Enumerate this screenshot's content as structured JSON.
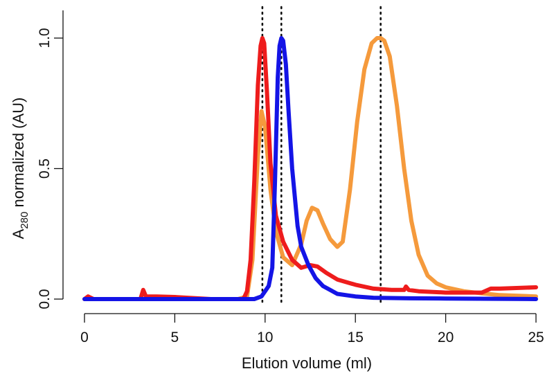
{
  "chart_data": {
    "type": "line",
    "title": "",
    "xlabel": "Elution volume (ml)",
    "ylabel": {
      "prefix": "A",
      "subscript": "280",
      "suffix": " normalized (AU)"
    },
    "xlim": [
      0,
      25
    ],
    "ylim": [
      0,
      1
    ],
    "xticks": [
      0,
      5,
      10,
      15,
      20,
      25
    ],
    "xtick_labels": [
      "0",
      "5",
      "10",
      "15",
      "20",
      "25"
    ],
    "yticks": [
      0,
      0.5,
      1
    ],
    "ytick_labels": [
      "0.0",
      "0.5",
      "1.0"
    ],
    "reference_lines_x": [
      9.85,
      10.9,
      16.4
    ],
    "legend": null,
    "grid": false,
    "series": [
      {
        "name": "orange",
        "color": "#f59a3c",
        "x": [
          0,
          3.2,
          3.4,
          5,
          8.5,
          9.0,
          9.3,
          9.6,
          9.8,
          10.0,
          10.3,
          10.6,
          11.0,
          11.5,
          12.0,
          12.3,
          12.6,
          12.9,
          13.2,
          13.6,
          14.0,
          14.3,
          14.7,
          15.1,
          15.5,
          15.9,
          16.2,
          16.4,
          16.6,
          16.9,
          17.3,
          17.7,
          18.1,
          18.5,
          19.0,
          19.5,
          20.0,
          21.0,
          22.0,
          23.0,
          25.0
        ],
        "values": [
          0.0,
          0.0,
          0.0,
          0.0,
          0.0,
          0.01,
          0.15,
          0.55,
          0.72,
          0.66,
          0.42,
          0.26,
          0.16,
          0.13,
          0.21,
          0.3,
          0.35,
          0.34,
          0.29,
          0.23,
          0.2,
          0.22,
          0.42,
          0.68,
          0.88,
          0.98,
          1.0,
          1.0,
          0.99,
          0.93,
          0.74,
          0.5,
          0.3,
          0.17,
          0.09,
          0.06,
          0.045,
          0.03,
          0.022,
          0.015,
          0.01
        ]
      },
      {
        "name": "red",
        "color": "#ee1c1c",
        "x": [
          0,
          0.2,
          0.35,
          0.5,
          3.1,
          3.25,
          3.4,
          4.0,
          5,
          7,
          8.8,
          9.0,
          9.2,
          9.4,
          9.6,
          9.75,
          9.85,
          9.95,
          10.1,
          10.3,
          10.6,
          11.0,
          11.5,
          12.0,
          12.5,
          12.9,
          13.4,
          14.0,
          15.0,
          16.0,
          17.0,
          17.7,
          17.8,
          17.95,
          18.5,
          20.0,
          22.0,
          22.5,
          23.0,
          25.0
        ],
        "values": [
          0.0,
          0.01,
          0.005,
          0.0,
          0.0,
          0.035,
          0.01,
          0.01,
          0.008,
          0.0,
          0.0,
          0.03,
          0.15,
          0.45,
          0.82,
          0.97,
          1.0,
          0.98,
          0.8,
          0.52,
          0.32,
          0.22,
          0.15,
          0.12,
          0.13,
          0.125,
          0.1,
          0.075,
          0.055,
          0.04,
          0.035,
          0.035,
          0.048,
          0.035,
          0.03,
          0.025,
          0.025,
          0.04,
          0.04,
          0.045
        ]
      },
      {
        "name": "blue",
        "color": "#1414e6",
        "x": [
          0,
          5,
          8,
          9.4,
          9.8,
          10.0,
          10.2,
          10.4,
          10.55,
          10.7,
          10.8,
          10.9,
          11.0,
          11.15,
          11.3,
          11.5,
          11.8,
          12.0,
          12.4,
          12.8,
          13.2,
          13.6,
          14.0,
          15.0,
          16.0,
          18.0,
          20.0,
          25.0
        ],
        "values": [
          0.0,
          0.0,
          0.0,
          0.0,
          0.01,
          0.03,
          0.05,
          0.12,
          0.45,
          0.85,
          0.97,
          1.0,
          0.99,
          0.9,
          0.72,
          0.5,
          0.28,
          0.2,
          0.13,
          0.08,
          0.05,
          0.035,
          0.02,
          0.01,
          0.005,
          0.003,
          0.002,
          0.0
        ]
      }
    ]
  }
}
